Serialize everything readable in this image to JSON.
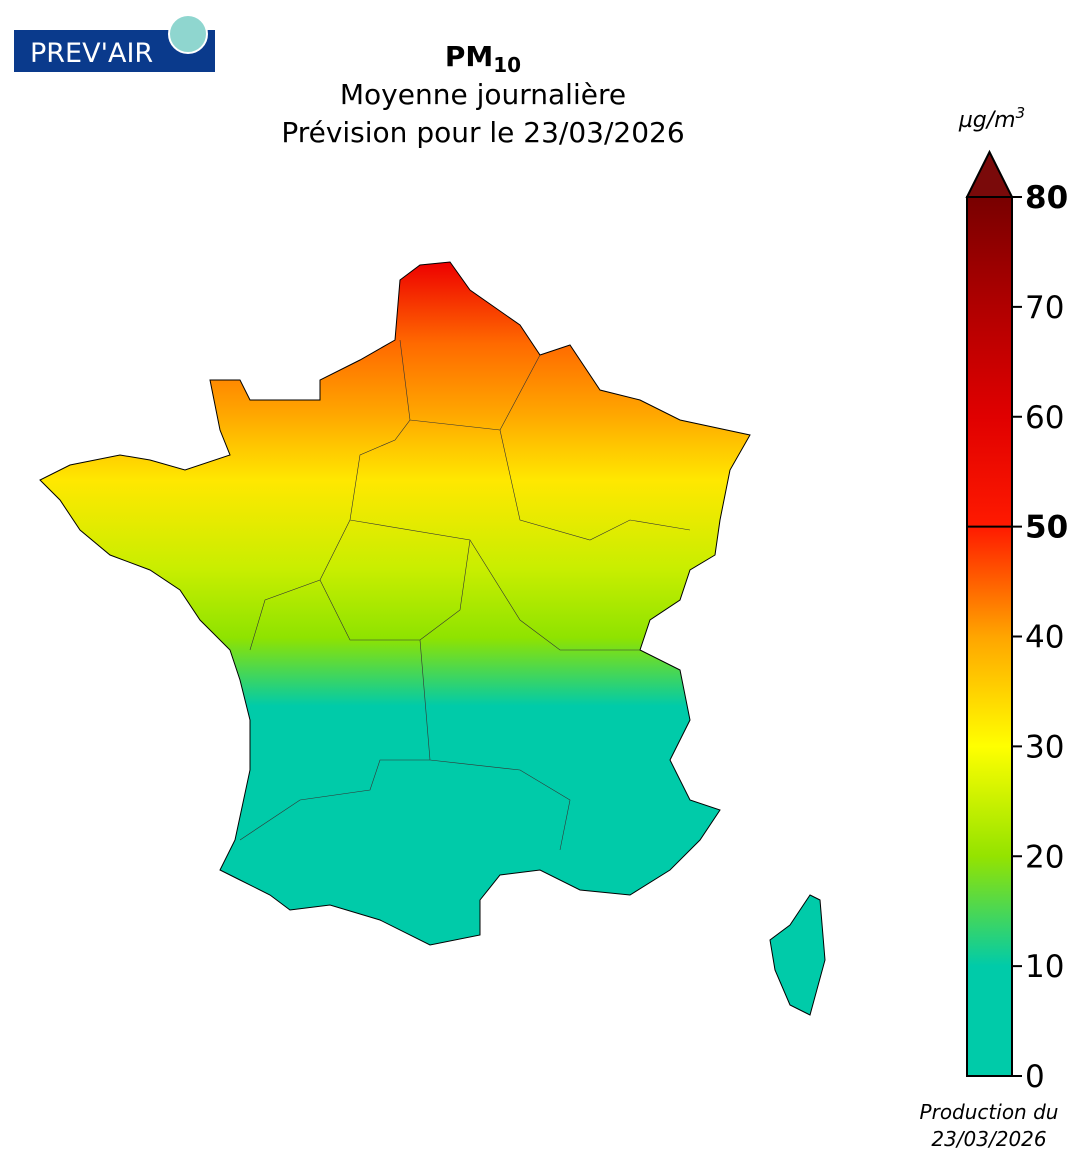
{
  "logo": "PREV'AIR",
  "title": {
    "base": "PM",
    "subscript": "10"
  },
  "subtitle": "Moyenne journalière",
  "forecast": "Prévision pour le 23/03/2026",
  "colorbar": {
    "unit": {
      "base": "µg/m",
      "superscript": "3"
    },
    "lim": [
      0,
      80
    ],
    "ticks": [
      0,
      10,
      20,
      30,
      40,
      50,
      60,
      70,
      80
    ],
    "bold_ticks": [
      50,
      80
    ],
    "colors": [
      "#00cba9",
      "#00cba9",
      "#94e300",
      "#ffff00",
      "#ffa500",
      "#ff1a00",
      "#e00000",
      "#b00000",
      "#780000"
    ],
    "over_color": "#7a0a0a"
  },
  "production": [
    "Production du",
    "23/03/2026"
  ]
}
